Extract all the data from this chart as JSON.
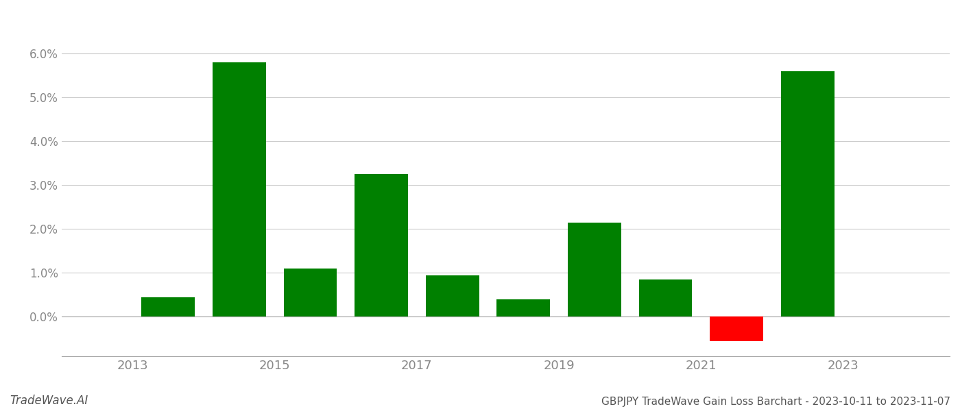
{
  "years": [
    2013,
    2014,
    2015,
    2016,
    2017,
    2018,
    2019,
    2020,
    2021,
    2022
  ],
  "values": [
    0.0045,
    0.058,
    0.011,
    0.0325,
    0.0095,
    0.004,
    0.0215,
    0.0085,
    -0.0055,
    0.056
  ],
  "bar_colors": [
    "#008000",
    "#008000",
    "#008000",
    "#008000",
    "#008000",
    "#008000",
    "#008000",
    "#008000",
    "#ff0000",
    "#008000"
  ],
  "title": "GBPJPY TradeWave Gain Loss Barchart - 2023-10-11 to 2023-11-07",
  "watermark": "TradeWave.AI",
  "ylim_min": -0.009,
  "ylim_max": 0.068,
  "yticks": [
    0.0,
    0.01,
    0.02,
    0.03,
    0.04,
    0.05,
    0.06
  ],
  "xtick_positions": [
    2013,
    2015,
    2017,
    2019,
    2021,
    2023
  ],
  "background_color": "#ffffff",
  "grid_color": "#cccccc",
  "bar_width": 0.75
}
